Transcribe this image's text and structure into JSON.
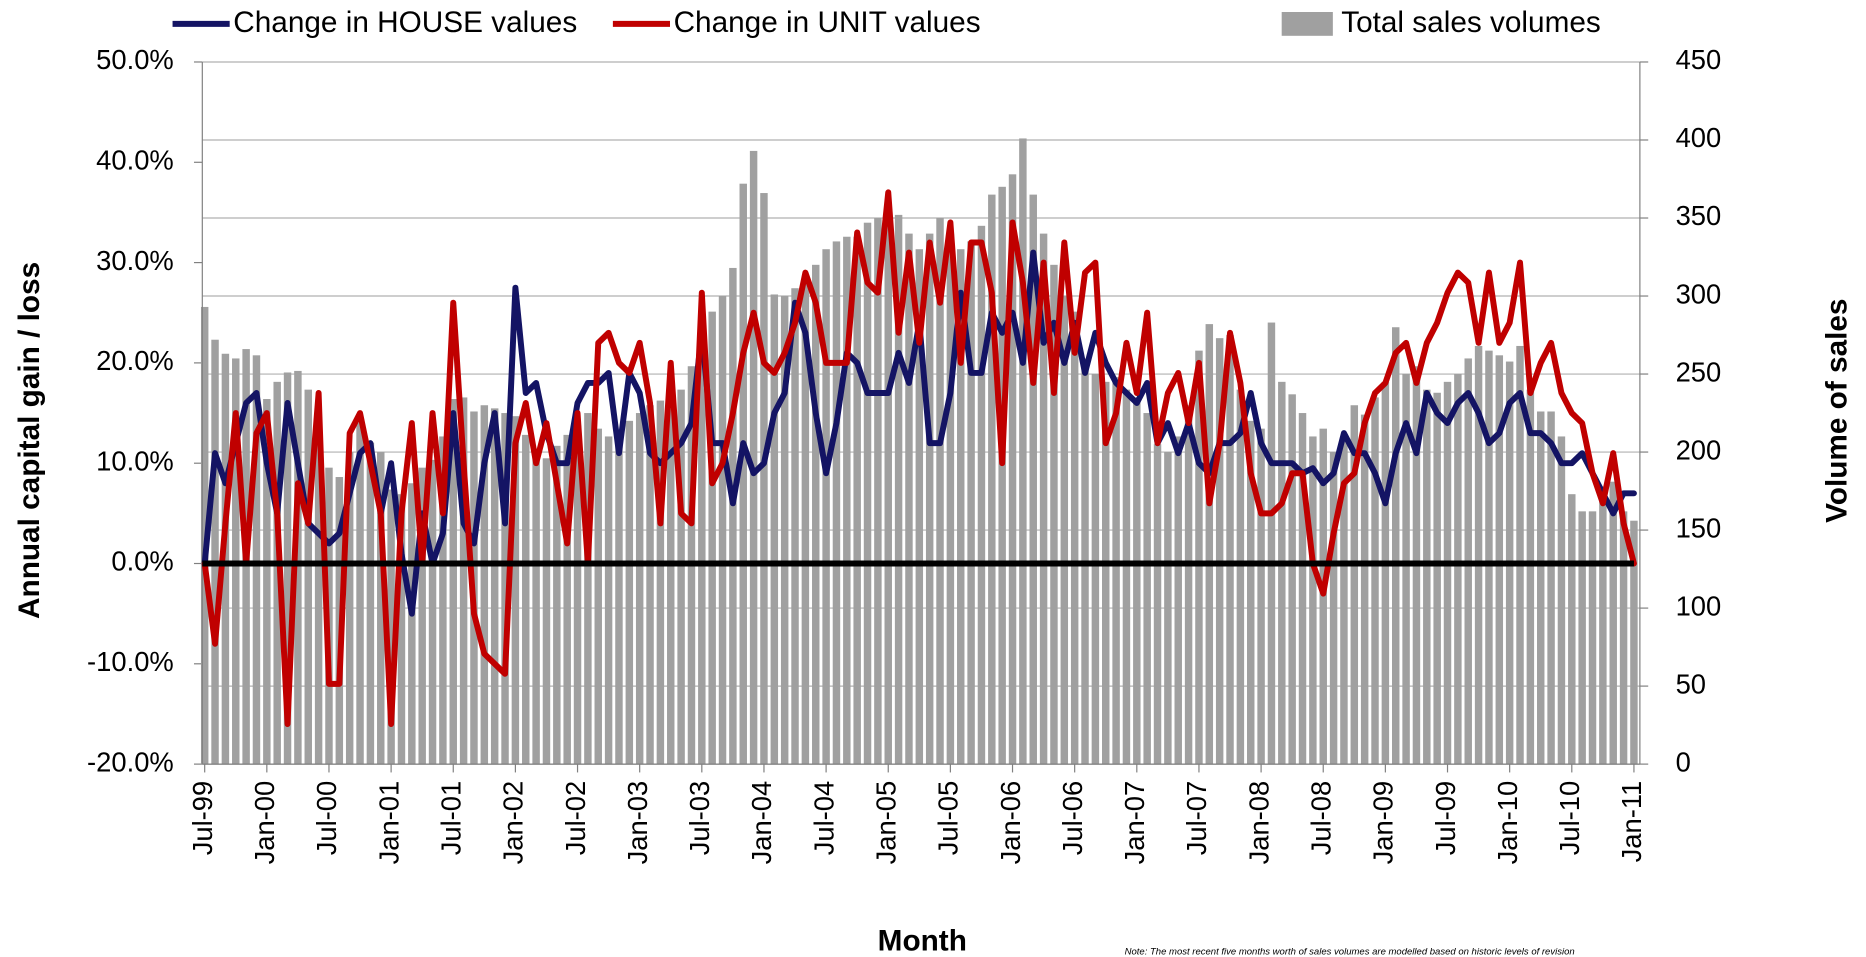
{
  "chart_data": {
    "type": "combo",
    "xlabel": "Month",
    "ylabel": "Annual capital gain / loss",
    "y2label": "Volume of sales",
    "note": "Note: The most recent five months worth of sales volumes are modelled based on historic levels of revision",
    "categories": [
      "Jul-99",
      null,
      null,
      null,
      null,
      null,
      "Jan-00",
      null,
      null,
      null,
      null,
      null,
      "Jul-00",
      null,
      null,
      null,
      null,
      null,
      "Jan-01",
      null,
      null,
      null,
      null,
      null,
      "Jul-01",
      null,
      null,
      null,
      null,
      null,
      "Jan-02",
      null,
      null,
      null,
      null,
      null,
      "Jul-02",
      null,
      null,
      null,
      null,
      null,
      "Jan-03",
      null,
      null,
      null,
      null,
      null,
      "Jul-03",
      null,
      null,
      null,
      null,
      null,
      "Jan-04",
      null,
      null,
      null,
      null,
      null,
      "Jul-04",
      null,
      null,
      null,
      null,
      null,
      "Jan-05",
      null,
      null,
      null,
      null,
      null,
      "Jul-05",
      null,
      null,
      null,
      null,
      null,
      "Jan-06",
      null,
      null,
      null,
      null,
      null,
      "Jul-06",
      null,
      null,
      null,
      null,
      null,
      "Jan-07",
      null,
      null,
      null,
      null,
      null,
      "Jul-07",
      null,
      null,
      null,
      null,
      null,
      "Jan-08",
      null,
      null,
      null,
      null,
      null,
      "Jul-08",
      null,
      null,
      null,
      null,
      null,
      "Jan-09",
      null,
      null,
      null,
      null,
      null,
      "Jul-09",
      null,
      null,
      null,
      null,
      null,
      "Jan-10",
      null,
      null,
      null,
      null,
      null,
      "Jul-10",
      null,
      null,
      null,
      null,
      null,
      "Jan-11"
    ],
    "series": [
      {
        "name": "Total sales volumes",
        "type": "bar",
        "axis": "y2",
        "color": "#a0a0a0",
        "values": [
          293,
          272,
          263,
          260,
          266,
          262,
          234,
          245,
          251,
          252,
          240,
          205,
          190,
          184,
          200,
          219,
          206,
          200,
          176,
          173,
          180,
          190,
          195,
          210,
          234,
          235,
          226,
          230,
          228,
          225,
          223,
          211,
          200,
          196,
          204,
          211,
          217,
          225,
          215,
          210,
          212,
          220,
          225,
          230,
          233,
          228,
          240,
          255,
          261,
          290,
          300,
          318,
          372,
          393,
          366,
          301,
          300,
          305,
          310,
          320,
          330,
          335,
          338,
          338,
          347,
          350,
          353,
          352,
          340,
          330,
          340,
          350,
          340,
          330,
          335,
          345,
          365,
          370,
          378,
          401,
          365,
          340,
          320,
          300,
          290,
          260,
          250,
          245,
          248,
          240,
          235,
          225,
          205,
          200,
          210,
          230,
          265,
          282,
          273,
          275,
          240,
          220,
          215,
          283,
          245,
          237,
          225,
          210,
          215,
          200,
          210,
          230,
          224,
          235,
          245,
          280,
          250,
          255,
          240,
          238,
          245,
          250,
          260,
          268,
          265,
          262,
          258,
          268,
          240,
          226,
          226,
          210,
          173,
          162,
          162,
          178,
          181,
          162,
          156
        ]
      },
      {
        "name": "Change in HOUSE values",
        "type": "line",
        "color": "#141464",
        "values": [
          0,
          11,
          8,
          12,
          16,
          17,
          10,
          5,
          16,
          10,
          4,
          3,
          2,
          3,
          7,
          11,
          12,
          5,
          10,
          1,
          -5,
          5,
          0,
          3,
          15,
          4,
          2,
          10,
          15,
          4,
          27.5,
          17,
          18,
          13,
          10,
          10,
          16,
          18,
          18,
          19,
          11,
          19,
          17,
          11,
          10,
          11,
          12,
          14,
          23,
          12,
          12,
          6,
          12,
          9,
          10,
          15,
          17,
          26,
          23,
          15,
          9,
          14,
          21,
          20,
          17,
          17,
          17,
          21,
          18,
          24,
          12,
          12,
          17,
          27,
          19,
          19,
          25,
          23,
          25,
          20,
          31,
          22,
          24,
          20,
          24,
          19,
          23,
          20,
          18,
          17,
          16,
          18,
          12,
          14,
          11,
          14,
          10,
          9,
          12,
          12,
          13,
          17,
          12,
          10,
          10,
          10,
          9,
          9.5,
          8,
          9,
          13,
          11,
          11,
          9,
          6,
          11,
          14,
          11,
          17,
          15,
          14,
          16,
          17,
          15,
          12,
          13,
          16,
          17,
          13,
          13,
          12,
          10,
          10,
          11,
          9,
          7,
          5,
          7,
          7
        ]
      },
      {
        "name": "Change in UNIT values",
        "type": "line",
        "color": "#c00000",
        "values": [
          0,
          -8,
          4,
          15,
          0,
          13,
          15,
          5,
          -16,
          8,
          4,
          17,
          -12,
          -12,
          13,
          15,
          10,
          5,
          -16,
          5,
          14,
          0,
          15,
          5,
          26,
          10,
          -5,
          -9,
          -10,
          -11,
          12,
          16,
          10,
          14,
          8,
          2,
          15,
          0,
          22,
          23,
          20,
          19,
          22,
          16,
          4,
          20,
          5,
          4,
          27,
          8,
          10,
          15,
          21,
          25,
          20,
          19,
          21,
          24,
          29,
          26,
          20,
          20,
          20,
          33,
          28,
          27,
          37,
          23,
          31,
          22,
          32,
          26,
          34,
          20,
          32,
          32,
          27,
          10,
          34,
          28,
          18,
          30,
          17,
          32,
          21,
          29,
          30,
          12,
          15,
          22,
          17,
          25,
          12,
          17,
          19,
          14,
          20,
          6,
          12,
          23,
          18,
          9,
          5,
          5,
          6,
          9,
          9,
          0,
          -3,
          3,
          8,
          9,
          14,
          17,
          18,
          21,
          22,
          18,
          22,
          24,
          27,
          29,
          28,
          22,
          29,
          22,
          24,
          30,
          17,
          20,
          22,
          17,
          15,
          14,
          9,
          6,
          11,
          4,
          0
        ]
      }
    ],
    "ylim": [
      -20,
      50
    ],
    "yticks": [
      {
        "value": -20,
        "label": "-20.0%"
      },
      {
        "value": -10,
        "label": "-10.0%"
      },
      {
        "value": 0,
        "label": "0.0%"
      },
      {
        "value": 10,
        "label": "10.0%"
      },
      {
        "value": 20,
        "label": "20.0%"
      },
      {
        "value": 30,
        "label": "30.0%"
      },
      {
        "value": 40,
        "label": "40.0%"
      },
      {
        "value": 50,
        "label": "50.0%"
      }
    ],
    "y2lim": [
      0,
      450
    ],
    "y2ticks": [
      0,
      50,
      100,
      150,
      200,
      250,
      300,
      350,
      400,
      450
    ],
    "grid": true
  }
}
